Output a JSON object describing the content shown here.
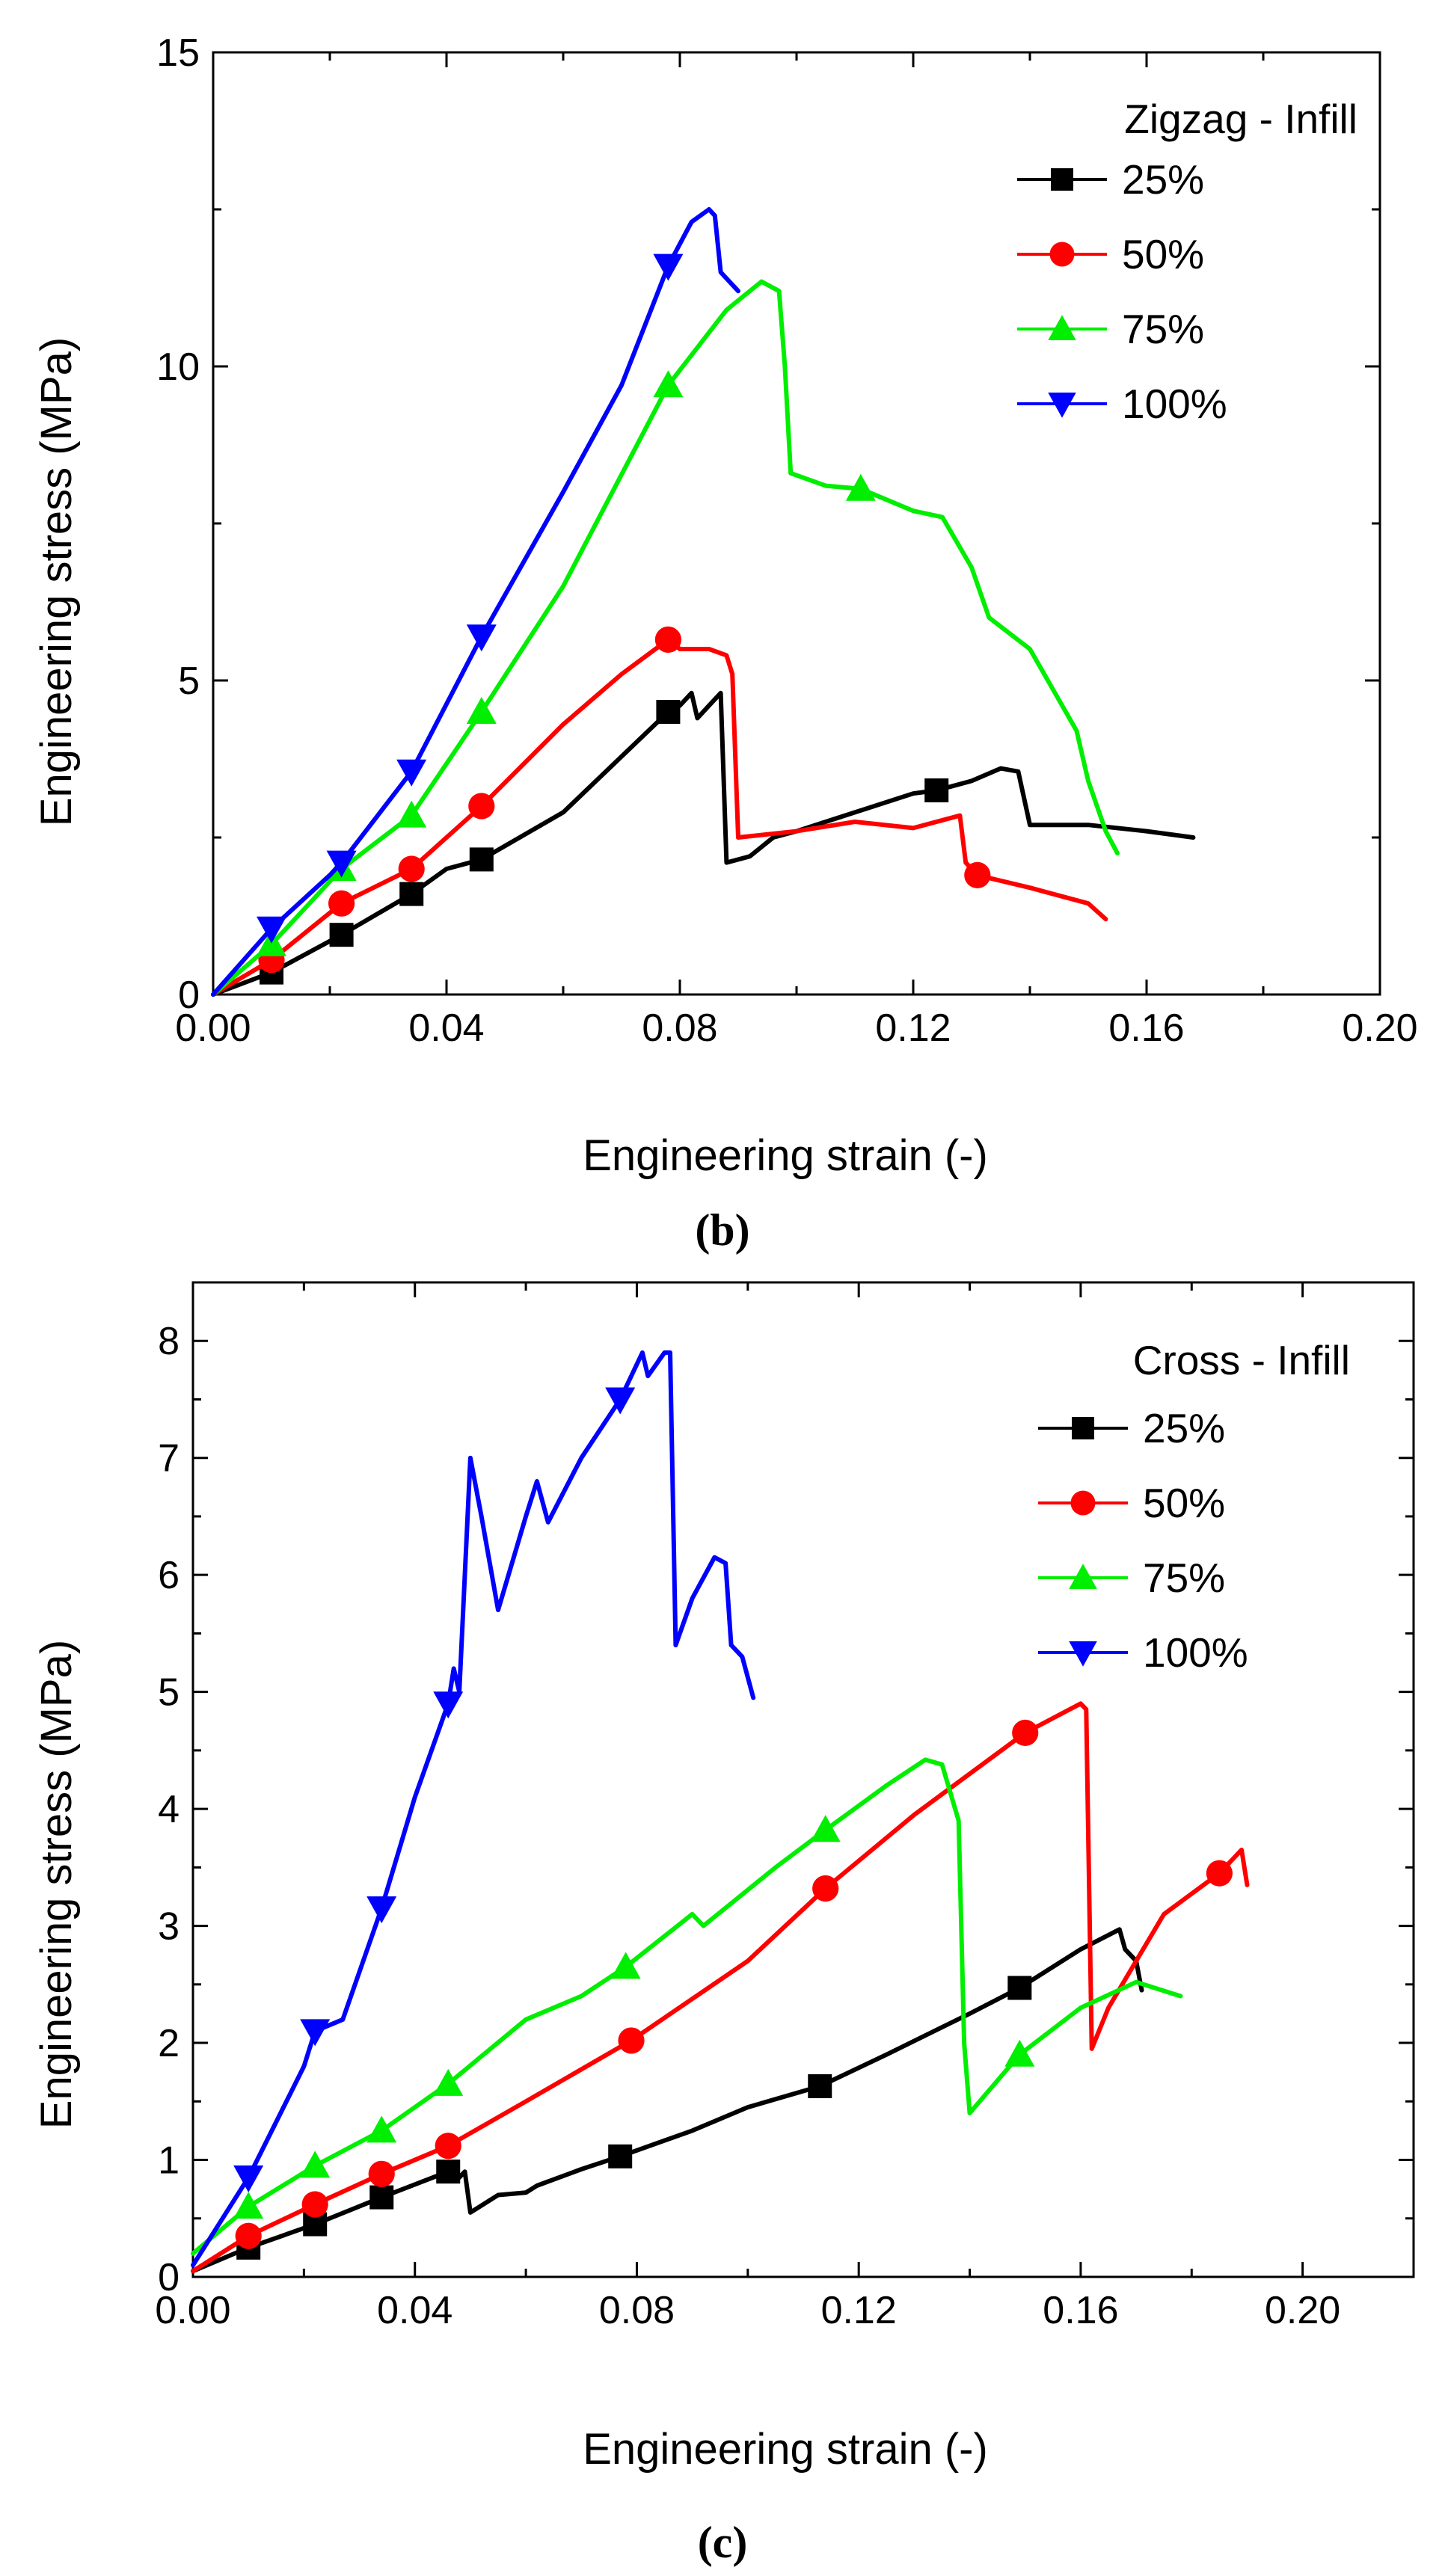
{
  "chart_data": [
    {
      "type": "line",
      "panel_label": "b",
      "xlabel": "Engineering strain (-)",
      "ylabel": "Engineering stress (MPa)",
      "xlim": [
        0,
        0.2
      ],
      "ylim": [
        0,
        15
      ],
      "xticks": [
        "0.00",
        "0.04",
        "0.08",
        "0.12",
        "0.16",
        "0.20"
      ],
      "yticks": [
        "0",
        "5",
        "10",
        "15"
      ],
      "grid": false,
      "legend_title": "Zigzag - Infill",
      "legend_position": "top-right",
      "series": [
        {
          "name": "25%",
          "color": "#000000",
          "marker": "square",
          "points": [
            [
              0,
              0
            ],
            [
              0.01,
              0.35
            ],
            [
              0.022,
              0.95
            ],
            [
              0.034,
              1.6
            ],
            [
              0.04,
              2.0
            ],
            [
              0.046,
              2.15
            ],
            [
              0.06,
              2.9
            ],
            [
              0.078,
              4.5
            ],
            [
              0.08,
              4.6
            ],
            [
              0.082,
              4.8
            ],
            [
              0.083,
              4.4
            ],
            [
              0.085,
              4.6
            ],
            [
              0.087,
              4.8
            ],
            [
              0.088,
              2.1
            ],
            [
              0.092,
              2.2
            ],
            [
              0.096,
              2.5
            ],
            [
              0.1,
              2.6
            ],
            [
              0.11,
              2.9
            ],
            [
              0.12,
              3.2
            ],
            [
              0.124,
              3.25
            ],
            [
              0.13,
              3.4
            ],
            [
              0.135,
              3.6
            ],
            [
              0.138,
              3.55
            ],
            [
              0.14,
              2.7
            ],
            [
              0.15,
              2.7
            ],
            [
              0.16,
              2.6
            ],
            [
              0.168,
              2.5
            ]
          ],
          "markers": [
            [
              0.01,
              0.35
            ],
            [
              0.022,
              0.95
            ],
            [
              0.034,
              1.6
            ],
            [
              0.046,
              2.15
            ],
            [
              0.078,
              4.5
            ],
            [
              0.124,
              3.25
            ]
          ]
        },
        {
          "name": "50%",
          "color": "#ff0000",
          "marker": "circle",
          "points": [
            [
              0,
              0
            ],
            [
              0.01,
              0.55
            ],
            [
              0.022,
              1.45
            ],
            [
              0.034,
              2.0
            ],
            [
              0.046,
              3.0
            ],
            [
              0.06,
              4.3
            ],
            [
              0.07,
              5.1
            ],
            [
              0.078,
              5.65
            ],
            [
              0.08,
              5.5
            ],
            [
              0.085,
              5.5
            ],
            [
              0.088,
              5.4
            ],
            [
              0.089,
              5.1
            ],
            [
              0.09,
              2.5
            ],
            [
              0.1,
              2.6
            ],
            [
              0.11,
              2.75
            ],
            [
              0.12,
              2.65
            ],
            [
              0.126,
              2.8
            ],
            [
              0.128,
              2.85
            ],
            [
              0.129,
              2.1
            ],
            [
              0.131,
              1.9
            ],
            [
              0.14,
              1.7
            ],
            [
              0.15,
              1.45
            ],
            [
              0.153,
              1.2
            ]
          ],
          "markers": [
            [
              0.01,
              0.55
            ],
            [
              0.022,
              1.45
            ],
            [
              0.034,
              2.0
            ],
            [
              0.046,
              3.0
            ],
            [
              0.078,
              5.65
            ],
            [
              0.131,
              1.9
            ]
          ]
        },
        {
          "name": "75%",
          "color": "#00ee00",
          "marker": "triangle-up",
          "points": [
            [
              0,
              0
            ],
            [
              0.01,
              0.8
            ],
            [
              0.022,
              2.0
            ],
            [
              0.034,
              2.85
            ],
            [
              0.046,
              4.5
            ],
            [
              0.06,
              6.5
            ],
            [
              0.078,
              9.7
            ],
            [
              0.088,
              10.9
            ],
            [
              0.094,
              11.35
            ],
            [
              0.097,
              11.2
            ],
            [
              0.098,
              10.0
            ],
            [
              0.099,
              8.3
            ],
            [
              0.105,
              8.1
            ],
            [
              0.111,
              8.05
            ],
            [
              0.12,
              7.7
            ],
            [
              0.125,
              7.6
            ],
            [
              0.13,
              6.8
            ],
            [
              0.133,
              6.0
            ],
            [
              0.14,
              5.5
            ],
            [
              0.148,
              4.2
            ],
            [
              0.15,
              3.4
            ],
            [
              0.153,
              2.6
            ],
            [
              0.155,
              2.25
            ]
          ],
          "markers": [
            [
              0.01,
              0.8
            ],
            [
              0.022,
              2.0
            ],
            [
              0.034,
              2.85
            ],
            [
              0.046,
              4.5
            ],
            [
              0.078,
              9.7
            ],
            [
              0.111,
              8.05
            ]
          ]
        },
        {
          "name": "100%",
          "color": "#0000ff",
          "marker": "triangle-down",
          "points": [
            [
              0,
              0
            ],
            [
              0.01,
              1.05
            ],
            [
              0.02,
              1.9
            ],
            [
              0.022,
              2.1
            ],
            [
              0.034,
              3.55
            ],
            [
              0.046,
              5.7
            ],
            [
              0.06,
              8.0
            ],
            [
              0.07,
              9.7
            ],
            [
              0.078,
              11.6
            ],
            [
              0.082,
              12.3
            ],
            [
              0.085,
              12.5
            ],
            [
              0.086,
              12.4
            ],
            [
              0.087,
              11.5
            ],
            [
              0.09,
              11.2
            ]
          ],
          "markers": [
            [
              0.01,
              1.05
            ],
            [
              0.022,
              2.1
            ],
            [
              0.034,
              3.55
            ],
            [
              0.046,
              5.7
            ],
            [
              0.078,
              11.6
            ]
          ]
        }
      ]
    },
    {
      "type": "line",
      "panel_label": "c",
      "xlabel": "Engineering strain (-)",
      "ylabel": "Engineering stress (MPa)",
      "xlim": [
        0,
        0.22
      ],
      "ylim": [
        0,
        8.5
      ],
      "xticks": [
        "0.00",
        "0.04",
        "0.08",
        "0.12",
        "0.16",
        "0.20"
      ],
      "yticks": [
        "0",
        "1",
        "2",
        "3",
        "4",
        "5",
        "6",
        "7",
        "8"
      ],
      "grid": false,
      "legend_title": "Cross - Infill",
      "legend_position": "top-right",
      "series": [
        {
          "name": "25%",
          "color": "#000000",
          "marker": "square",
          "points": [
            [
              0,
              0.05
            ],
            [
              0.01,
              0.25
            ],
            [
              0.022,
              0.45
            ],
            [
              0.034,
              0.68
            ],
            [
              0.046,
              0.9
            ],
            [
              0.048,
              0.85
            ],
            [
              0.049,
              0.9
            ],
            [
              0.05,
              0.55
            ],
            [
              0.055,
              0.7
            ],
            [
              0.06,
              0.72
            ],
            [
              0.062,
              0.78
            ],
            [
              0.07,
              0.92
            ],
            [
              0.077,
              1.03
            ],
            [
              0.09,
              1.25
            ],
            [
              0.1,
              1.45
            ],
            [
              0.113,
              1.63
            ],
            [
              0.125,
              1.9
            ],
            [
              0.14,
              2.25
            ],
            [
              0.149,
              2.47
            ],
            [
              0.16,
              2.8
            ],
            [
              0.167,
              2.97
            ],
            [
              0.168,
              2.8
            ],
            [
              0.17,
              2.7
            ],
            [
              0.171,
              2.45
            ]
          ],
          "markers": [
            [
              0.01,
              0.25
            ],
            [
              0.022,
              0.45
            ],
            [
              0.034,
              0.68
            ],
            [
              0.046,
              0.9
            ],
            [
              0.077,
              1.03
            ],
            [
              0.113,
              1.63
            ],
            [
              0.149,
              2.47
            ]
          ]
        },
        {
          "name": "50%",
          "color": "#ff0000",
          "marker": "circle",
          "points": [
            [
              0,
              0.05
            ],
            [
              0.01,
              0.35
            ],
            [
              0.022,
              0.62
            ],
            [
              0.034,
              0.88
            ],
            [
              0.046,
              1.12
            ],
            [
              0.06,
              1.5
            ],
            [
              0.079,
              2.02
            ],
            [
              0.1,
              2.7
            ],
            [
              0.114,
              3.32
            ],
            [
              0.13,
              3.95
            ],
            [
              0.15,
              4.65
            ],
            [
              0.16,
              4.9
            ],
            [
              0.161,
              4.85
            ],
            [
              0.162,
              1.95
            ],
            [
              0.165,
              2.3
            ],
            [
              0.175,
              3.1
            ],
            [
              0.185,
              3.45
            ],
            [
              0.189,
              3.65
            ],
            [
              0.19,
              3.35
            ]
          ],
          "markers": [
            [
              0.01,
              0.35
            ],
            [
              0.022,
              0.62
            ],
            [
              0.034,
              0.88
            ],
            [
              0.046,
              1.12
            ],
            [
              0.079,
              2.02
            ],
            [
              0.114,
              3.32
            ],
            [
              0.15,
              4.65
            ],
            [
              0.185,
              3.45
            ]
          ]
        },
        {
          "name": "75%",
          "color": "#00ee00",
          "marker": "triangle-up",
          "points": [
            [
              0,
              0.2
            ],
            [
              0.01,
              0.6
            ],
            [
              0.022,
              0.95
            ],
            [
              0.034,
              1.25
            ],
            [
              0.046,
              1.65
            ],
            [
              0.06,
              2.2
            ],
            [
              0.07,
              2.4
            ],
            [
              0.078,
              2.65
            ],
            [
              0.09,
              3.1
            ],
            [
              0.092,
              3.0
            ],
            [
              0.105,
              3.5
            ],
            [
              0.114,
              3.82
            ],
            [
              0.125,
              4.2
            ],
            [
              0.132,
              4.42
            ],
            [
              0.135,
              4.38
            ],
            [
              0.138,
              3.9
            ],
            [
              0.139,
              2.0
            ],
            [
              0.14,
              1.4
            ],
            [
              0.149,
              1.9
            ],
            [
              0.16,
              2.3
            ],
            [
              0.17,
              2.52
            ],
            [
              0.178,
              2.4
            ]
          ],
          "markers": [
            [
              0.01,
              0.6
            ],
            [
              0.022,
              0.95
            ],
            [
              0.034,
              1.25
            ],
            [
              0.046,
              1.65
            ],
            [
              0.078,
              2.65
            ],
            [
              0.114,
              3.82
            ],
            [
              0.149,
              1.9
            ]
          ]
        },
        {
          "name": "100%",
          "color": "#0000ff",
          "marker": "triangle-down",
          "points": [
            [
              0,
              0.1
            ],
            [
              0.01,
              0.85
            ],
            [
              0.02,
              1.8
            ],
            [
              0.022,
              2.1
            ],
            [
              0.027,
              2.2
            ],
            [
              0.034,
              3.15
            ],
            [
              0.04,
              4.1
            ],
            [
              0.046,
              4.9
            ],
            [
              0.047,
              5.2
            ],
            [
              0.048,
              5.0
            ],
            [
              0.05,
              7.0
            ],
            [
              0.052,
              6.5
            ],
            [
              0.055,
              5.7
            ],
            [
              0.06,
              6.5
            ],
            [
              0.062,
              6.8
            ],
            [
              0.064,
              6.45
            ],
            [
              0.07,
              7.0
            ],
            [
              0.077,
              7.5
            ],
            [
              0.081,
              7.9
            ],
            [
              0.082,
              7.7
            ],
            [
              0.085,
              7.9
            ],
            [
              0.086,
              7.9
            ],
            [
              0.087,
              5.4
            ],
            [
              0.09,
              5.8
            ],
            [
              0.094,
              6.15
            ],
            [
              0.096,
              6.1
            ],
            [
              0.097,
              5.4
            ],
            [
              0.099,
              5.3
            ],
            [
              0.101,
              4.95
            ]
          ],
          "markers": [
            [
              0.01,
              0.85
            ],
            [
              0.022,
              2.1
            ],
            [
              0.034,
              3.15
            ],
            [
              0.046,
              4.9
            ],
            [
              0.077,
              7.5
            ]
          ]
        }
      ]
    }
  ],
  "captions": [
    "(b)",
    "(c)"
  ]
}
